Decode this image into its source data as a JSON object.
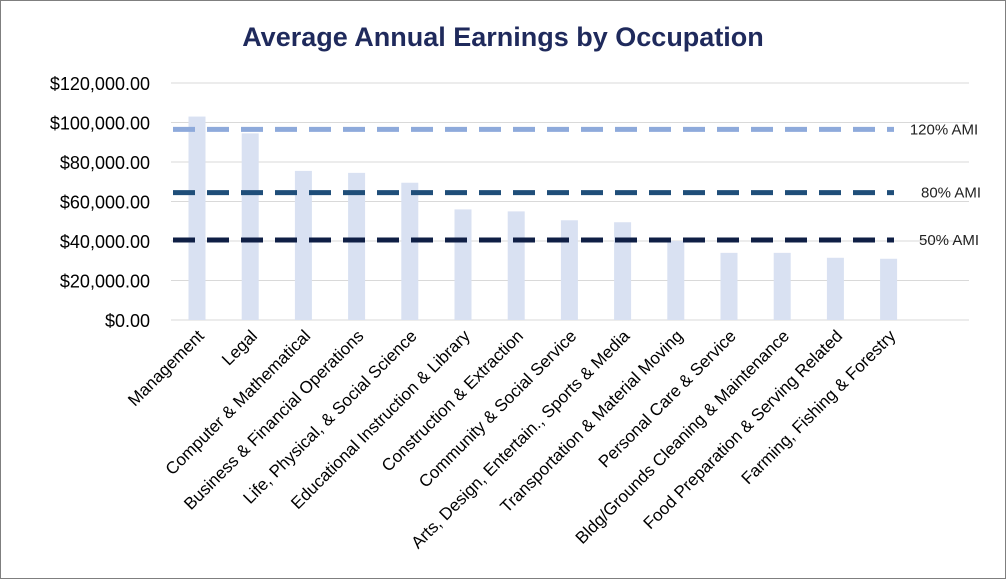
{
  "chart_data": {
    "type": "bar",
    "title": "Average Annual Earnings by Occupation",
    "xlabel": "",
    "ylabel": "",
    "ylim": [
      0,
      120000
    ],
    "y_ticks": [
      {
        "value": 0,
        "label": "$0.00"
      },
      {
        "value": 20000,
        "label": "$20,000.00"
      },
      {
        "value": 40000,
        "label": "$40,000.00"
      },
      {
        "value": 60000,
        "label": "$60,000.00"
      },
      {
        "value": 80000,
        "label": "$80,000.00"
      },
      {
        "value": 100000,
        "label": "$100,000.00"
      },
      {
        "value": 120000,
        "label": "$120,000.00"
      }
    ],
    "grid": true,
    "categories": [
      "Management",
      "Legal",
      "Computer & Mathematical",
      "Business & Financial Operations",
      "Life, Physical, & Social Science",
      "Educational Instruction & Library",
      "Construction & Extraction",
      "Community & Social Service",
      "Arts, Design, Entertain., Sports & Media",
      "Transportation & Material Moving",
      "Personal Care & Service",
      "Bldg/Grounds Cleaning & Maintenance",
      "Food Preparation & Serving Related",
      "Farming, Fishing & Forestry"
    ],
    "values": [
      103000,
      94500,
      75500,
      74500,
      69500,
      56000,
      55000,
      50500,
      49500,
      40000,
      34000,
      34000,
      31500,
      31000
    ],
    "bar_color": "#d9e1f2",
    "reference_lines": [
      {
        "label": "120% AMI",
        "value": 96500,
        "color": "#8eaadb"
      },
      {
        "label": "80% AMI",
        "value": 64500,
        "color": "#1f4e79"
      },
      {
        "label": "50% AMI",
        "value": 40500,
        "color": "#0f1f45"
      }
    ]
  }
}
